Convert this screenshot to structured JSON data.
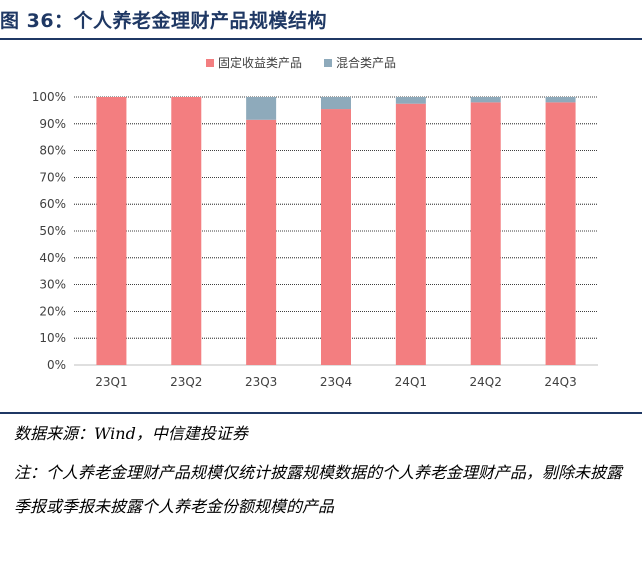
{
  "figure": {
    "title": "图 36：个人养老金理财产品规模结构",
    "source": "数据来源：Wind，中信建投证券",
    "note": "注：个人养老金理财产品规模仅统计披露规模数据的个人养老金理财产品，剔除未披露季报或季报未披露个人养老金份额规模的产品"
  },
  "chart_data": {
    "type": "bar",
    "stacked": true,
    "categories": [
      "23Q1",
      "23Q2",
      "23Q3",
      "23Q4",
      "24Q1",
      "24Q2",
      "24Q3"
    ],
    "series": [
      {
        "name": "固定收益类产品",
        "color": "#f37e80",
        "values": [
          100,
          100,
          91.5,
          95.5,
          97.5,
          98.0,
          98.0
        ]
      },
      {
        "name": "混合类产品",
        "color": "#8eaabb",
        "values": [
          0,
          0,
          8.5,
          4.5,
          2.5,
          2.0,
          2.0
        ]
      }
    ],
    "ylim": [
      0,
      100
    ],
    "yticks": [
      "0%",
      "10%",
      "20%",
      "30%",
      "40%",
      "50%",
      "60%",
      "70%",
      "80%",
      "90%",
      "100%"
    ],
    "grid": true,
    "legend_position": "top"
  }
}
